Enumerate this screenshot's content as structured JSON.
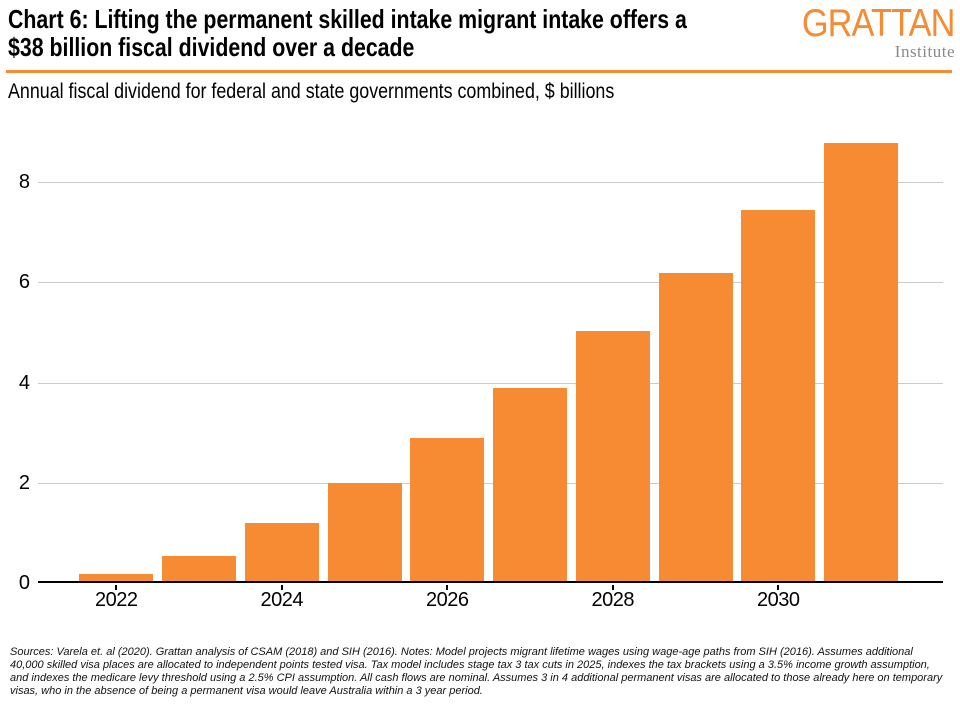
{
  "header": {
    "title_lines": [
      "Chart 6: Lifting the permanent skilled intake migrant intake offers a",
      "$38 billion fiscal dividend over a decade"
    ],
    "subtitle": "Annual fiscal dividend for federal and state governments combined, $ billions",
    "logo": {
      "wordmark": "GRATTAN",
      "institute": "Institute"
    }
  },
  "colors": {
    "accent_orange": "#F68B33",
    "bar_orange": "#F68B33",
    "gridline_gray": "#CBCBCE",
    "axis_black": "#000000",
    "logo_gray": "#8A8A8A"
  },
  "chart_data": {
    "type": "bar",
    "title": "Annual fiscal dividend for federal and state governments combined, $ billions",
    "x": [
      2022,
      2023,
      2024,
      2025,
      2026,
      2027,
      2028,
      2029,
      2030,
      2031
    ],
    "values": [
      0.15,
      0.5,
      1.15,
      1.95,
      2.85,
      3.85,
      5.0,
      6.15,
      7.4,
      8.75
    ],
    "bar_color": "#F68B33",
    "yticks": [
      0,
      2,
      4,
      6,
      8
    ],
    "xtick_labels": [
      "2022",
      "2024",
      "2026",
      "2028",
      "2030"
    ],
    "ylim": [
      0,
      8.95
    ],
    "grid": "horizontal",
    "legend": "none"
  },
  "footnote": "Sources: Varela et. al (2020). Grattan analysis of CSAM (2018) and SIH (2016). Notes: Model projects migrant lifetime wages using wage-age paths from SIH (2016). Assumes additional 40,000 skilled visa places are allocated to independent points tested visa. Tax model includes stage tax 3 tax cuts in 2025, indexes the tax brackets using a 3.5% income growth assumption, and indexes the medicare levy threshold using a 2.5% CPI assumption. All cash flows are nominal. Assumes 3 in 4 additional permanent visas are allocated to those already here on temporary visas, who in the absence of being a permanent visa would leave Australia within a 3 year period."
}
